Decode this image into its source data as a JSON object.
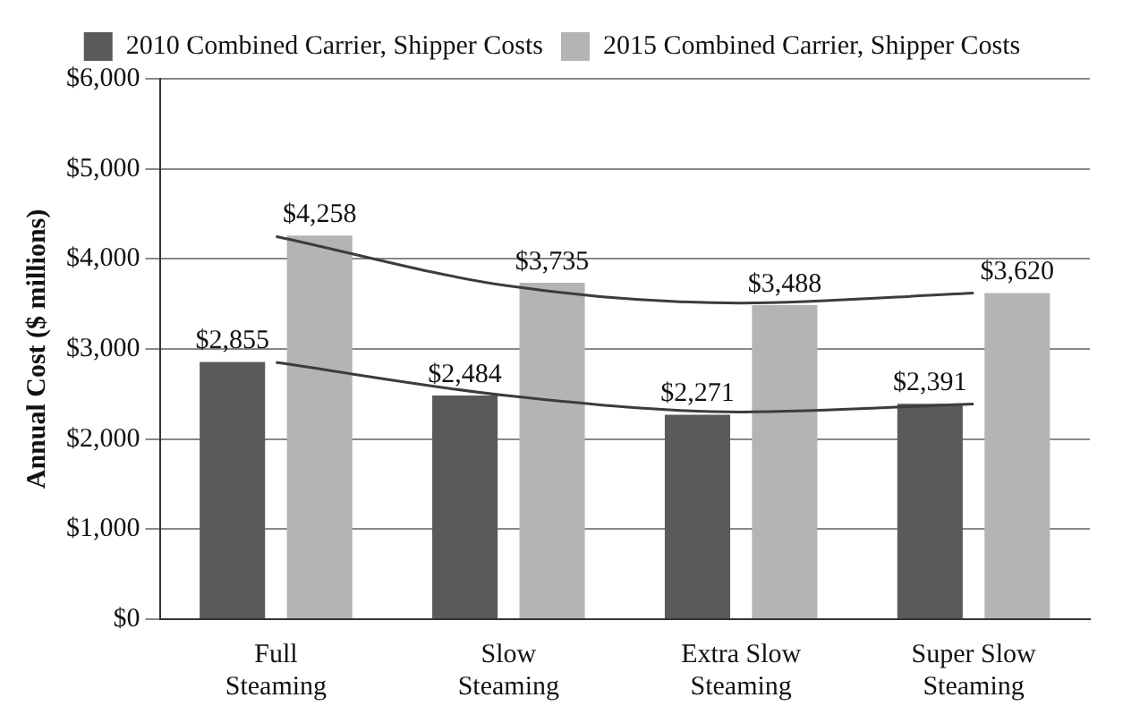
{
  "chart_data": {
    "type": "bar",
    "ylabel": "Annual Cost ($ millions)",
    "categories": [
      "Full\nSteaming",
      "Slow\nSteaming",
      "Extra Slow\nSteaming",
      "Super Slow\nSteaming"
    ],
    "series": [
      {
        "name": "2010 Combined Carrier, Shipper Costs",
        "color": "#5a5a5a",
        "values": [
          2855,
          2484,
          2271,
          2391
        ],
        "value_labels": [
          "$2,855",
          "$2,484",
          "$2,271",
          "$2,391"
        ]
      },
      {
        "name": "2015 Combined Carrier, Shipper Costs",
        "color": "#b4b4b4",
        "values": [
          4258,
          3735,
          3488,
          3620
        ],
        "value_labels": [
          "$4,258",
          "$3,735",
          "$3,488",
          "$3,620"
        ]
      },
      {
        "type": "line",
        "color": "#3c3c3c",
        "values": [
          2850,
          2480,
          2300,
          2390
        ]
      },
      {
        "type": "line",
        "color": "#3c3c3c",
        "values": [
          4250,
          3700,
          3510,
          3620
        ]
      }
    ],
    "ylim": [
      0,
      6000
    ],
    "yticks": [
      {
        "value": 0,
        "label": "$0"
      },
      {
        "value": 1000,
        "label": "$1,000"
      },
      {
        "value": 2000,
        "label": "$2,000"
      },
      {
        "value": 3000,
        "label": "$3,000"
      },
      {
        "value": 4000,
        "label": "$4,000"
      },
      {
        "value": 5000,
        "label": "$5,000"
      },
      {
        "value": 6000,
        "label": "$6,000"
      }
    ],
    "grid": "y",
    "legend": "top"
  }
}
